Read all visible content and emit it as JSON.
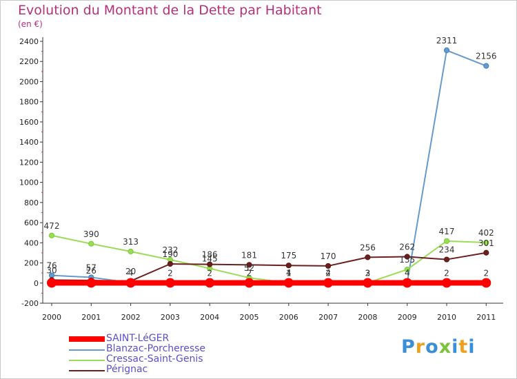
{
  "header": {
    "title": "Evolution du Montant de la Dette par Habitant",
    "unit": "(en €)"
  },
  "logo": {
    "text": "Proxiti",
    "letters": [
      {
        "ch": "P",
        "color": "#3a8fd6"
      },
      {
        "ch": "r",
        "color": "#f0a020"
      },
      {
        "ch": "o",
        "color": "#3a8fd6"
      },
      {
        "ch": "x",
        "color": "#7bc43a"
      },
      {
        "ch": "i",
        "color": "#3a8fd6"
      },
      {
        "ch": "t",
        "color": "#f0a020"
      },
      {
        "ch": "i",
        "color": "#3a8fd6"
      }
    ]
  },
  "chart_data": {
    "type": "line",
    "title": "Evolution du Montant de la Dette par Habitant",
    "subtitle": "(en €)",
    "xlabel": "",
    "ylabel": "",
    "x": [
      "2000",
      "2001",
      "2002",
      "2003",
      "2004",
      "2005",
      "2006",
      "2007",
      "2008",
      "2009",
      "2010",
      "2011"
    ],
    "ylim": [
      -200,
      2400
    ],
    "yticks": [
      -200,
      0,
      200,
      400,
      600,
      800,
      1000,
      1200,
      1400,
      1600,
      1800,
      2000,
      2200,
      2400
    ],
    "grid": false,
    "legend_position": "bottom-left",
    "series": [
      {
        "name": "SAINT-LéGER",
        "color": "#ff0000",
        "marker_edge": "#ff0000",
        "thick": true,
        "values": [
          2,
          2,
          2,
          2,
          2,
          2,
          2,
          2,
          2,
          2,
          2,
          2
        ],
        "labels": [
          "",
          "",
          "",
          "",
          "",
          "",
          "",
          "",
          "",
          "",
          "2",
          "2"
        ]
      },
      {
        "name": "Blanzac-Porcheresse",
        "color": "#6699cc",
        "marker_edge": "#3a7fc1",
        "thick": false,
        "values": [
          76,
          57,
          4,
          2,
          2,
          2,
          4,
          4,
          3,
          4,
          2311,
          2156
        ],
        "labels": [
          "76",
          "57",
          "4",
          "2",
          "2",
          "2",
          "4",
          "4",
          "3",
          "4",
          "2311",
          "2156"
        ]
      },
      {
        "name": "Cressac-Saint-Genis",
        "color": "#99dd55",
        "marker_edge": "#77cc33",
        "thick": false,
        "values": [
          472,
          390,
          313,
          232,
          145,
          52,
          1,
          2,
          2,
          135,
          417,
          402
        ],
        "labels": [
          "472",
          "390",
          "313",
          "232",
          "145",
          "52",
          "1",
          "2",
          "2",
          "135",
          "417",
          "402"
        ]
      },
      {
        "name": "Pérignac",
        "color": "#6b1f1f",
        "marker_edge": "#5a1515",
        "thick": false,
        "values": [
          30,
          26,
          20,
          190,
          186,
          181,
          175,
          170,
          256,
          262,
          234,
          301
        ],
        "labels": [
          "30",
          "26",
          "20",
          "190",
          "186",
          "181",
          "175",
          "170",
          "256",
          "262",
          "234",
          "301"
        ]
      }
    ]
  }
}
